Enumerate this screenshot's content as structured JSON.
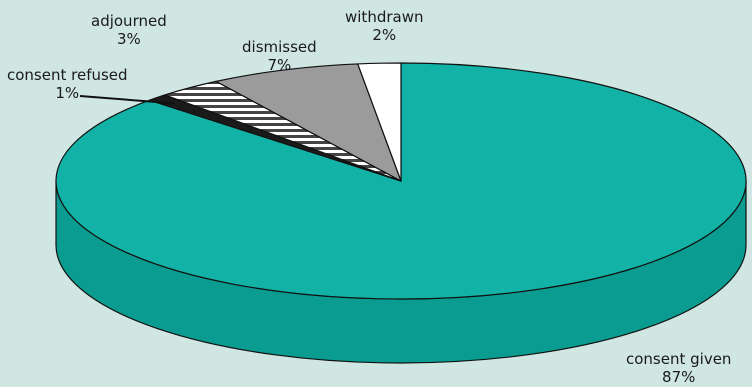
{
  "chart_data": {
    "type": "pie",
    "style": "3d",
    "slices": [
      {
        "label": "consent given",
        "value": 87,
        "display": "87%",
        "color": "#12b3a6",
        "side_color": "#0a9c90",
        "pattern": "solid"
      },
      {
        "label": "consent refused",
        "value": 1,
        "display": "1%",
        "color": "#1a1a1a",
        "side_color": "#1a1a1a",
        "pattern": "solid"
      },
      {
        "label": "adjourned",
        "value": 3,
        "display": "3%",
        "color": "#ffffff",
        "side_color": "#e0e0e0",
        "pattern": "stripes"
      },
      {
        "label": "dismissed",
        "value": 7,
        "display": "7%",
        "color": "#9b9b9b",
        "side_color": "#808080",
        "pattern": "solid"
      },
      {
        "label": "withdrawn",
        "value": 2,
        "display": "2%",
        "color": "#ffffff",
        "side_color": "#eeeeee",
        "pattern": "solid"
      }
    ]
  }
}
